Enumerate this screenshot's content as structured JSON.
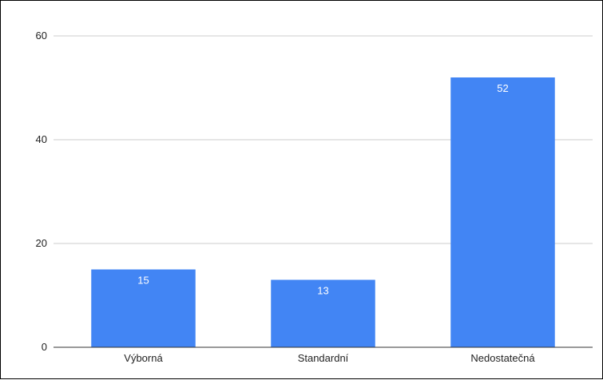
{
  "chart_data": {
    "type": "bar",
    "title": "",
    "xlabel": "",
    "ylabel": "",
    "categories": [
      "Výborná",
      "Standardní",
      "Nedostatečná"
    ],
    "values": [
      15,
      13,
      52
    ],
    "data_labels": [
      "15",
      "13",
      "52"
    ],
    "ylim": [
      0,
      60
    ],
    "y_ticks": [
      0,
      20,
      40,
      60
    ],
    "y_tick_labels": [
      "0",
      "20",
      "40",
      "60"
    ],
    "grid": true,
    "legend": "none",
    "colors": {
      "bar": "#4285f4",
      "grid": "#cccccc",
      "axis": "#333333",
      "data_label": "#ffffff"
    }
  }
}
